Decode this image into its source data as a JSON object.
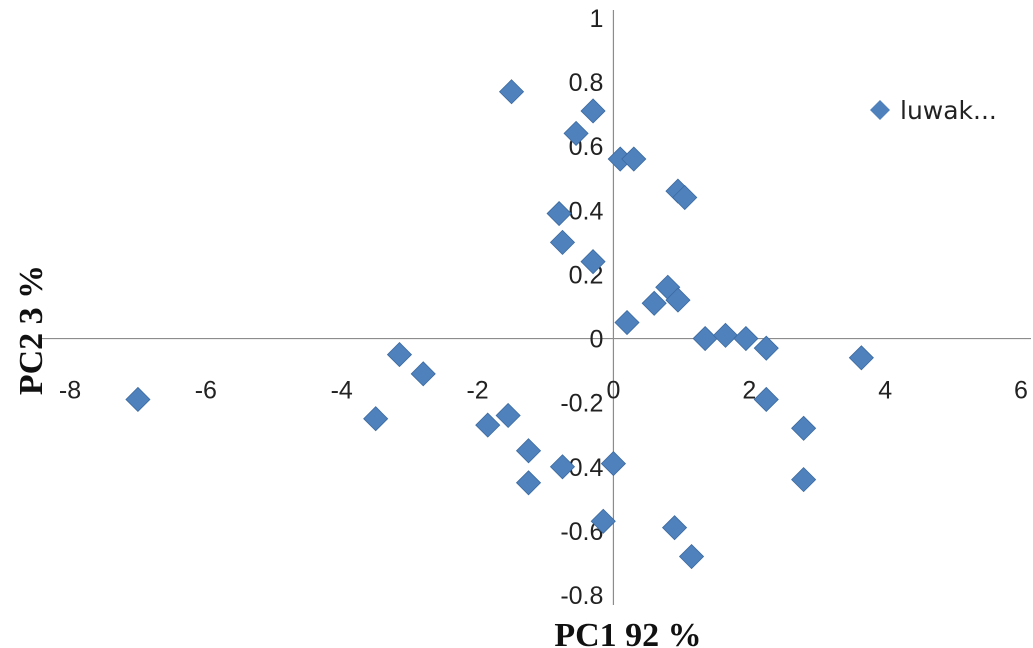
{
  "chart_data": {
    "type": "scatter",
    "xlabel": "PC1 92 %",
    "ylabel": "PC2 3 %",
    "xlim": [
      -8,
      6
    ],
    "ylim": [
      -0.8,
      1
    ],
    "x_ticks": [
      "-8",
      "-6",
      "-4",
      "-2",
      "0",
      "2",
      "4",
      "6"
    ],
    "y_ticks": [
      "1",
      "0.8",
      "0.6",
      "0.4",
      "0.2",
      "0",
      "-0.2",
      "-0.4",
      "-0.6",
      "-0.8"
    ],
    "grid": false,
    "legend_position": "top-right",
    "marker": "diamond",
    "marker_color": "#4F81BD",
    "series": [
      {
        "name": "luwak...",
        "points": [
          {
            "x": -7.0,
            "y": -0.19
          },
          {
            "x": -3.5,
            "y": -0.25
          },
          {
            "x": -3.15,
            "y": -0.05
          },
          {
            "x": -2.8,
            "y": -0.11
          },
          {
            "x": -1.85,
            "y": -0.27
          },
          {
            "x": -1.55,
            "y": -0.24
          },
          {
            "x": -1.5,
            "y": 0.77
          },
          {
            "x": -1.25,
            "y": -0.35
          },
          {
            "x": -1.25,
            "y": -0.45
          },
          {
            "x": -0.8,
            "y": 0.39
          },
          {
            "x": -0.75,
            "y": 0.3
          },
          {
            "x": -0.75,
            "y": -0.4
          },
          {
            "x": -0.55,
            "y": 0.64
          },
          {
            "x": -0.3,
            "y": 0.71
          },
          {
            "x": -0.3,
            "y": 0.24
          },
          {
            "x": -0.15,
            "y": -0.57
          },
          {
            "x": 0.0,
            "y": -0.39
          },
          {
            "x": 0.1,
            "y": 0.56
          },
          {
            "x": 0.3,
            "y": 0.56
          },
          {
            "x": 0.2,
            "y": 0.05
          },
          {
            "x": 0.6,
            "y": 0.11
          },
          {
            "x": 0.8,
            "y": 0.16
          },
          {
            "x": 0.95,
            "y": 0.12
          },
          {
            "x": 0.95,
            "y": 0.46
          },
          {
            "x": 1.05,
            "y": 0.44
          },
          {
            "x": 0.9,
            "y": -0.59
          },
          {
            "x": 1.15,
            "y": -0.68
          },
          {
            "x": 1.35,
            "y": 0.0
          },
          {
            "x": 1.65,
            "y": 0.01
          },
          {
            "x": 1.95,
            "y": 0.0
          },
          {
            "x": 2.25,
            "y": -0.03
          },
          {
            "x": 2.25,
            "y": -0.19
          },
          {
            "x": 2.8,
            "y": -0.28
          },
          {
            "x": 2.8,
            "y": -0.44
          },
          {
            "x": 3.65,
            "y": -0.06
          }
        ]
      }
    ]
  }
}
